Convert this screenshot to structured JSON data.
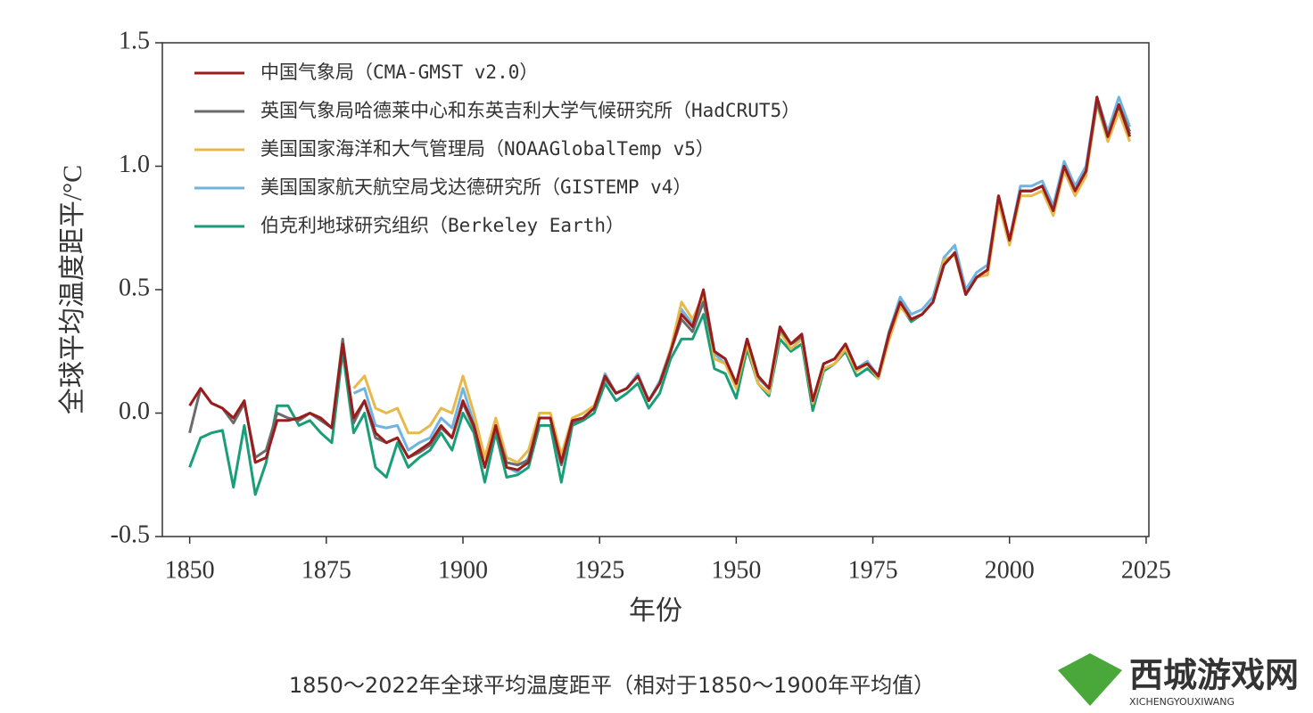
{
  "chart_data": {
    "type": "line",
    "y_label": "全球平均温度距平/°C",
    "x_label": "年份",
    "caption": "1850～2022年全球平均温度距平（相对于1850～1900年平均值）",
    "watermark": {
      "title": "西城游戏网",
      "subtitle": "XICHENGYOUXIWANG"
    },
    "legend": "upper left",
    "xlim": [
      1845,
      2025.5
    ],
    "xticks": [
      1850,
      1875,
      1900,
      1925,
      1950,
      1975,
      2000,
      2025
    ],
    "ylim": [
      -0.5,
      1.5
    ],
    "yticks": [
      -0.5,
      {
        "value": 0,
        "label": "0.0"
      },
      0.5,
      {
        "value": 1,
        "label": "1.0"
      },
      1.5
    ],
    "x": [
      1850,
      1852,
      1854,
      1856,
      1858,
      1860,
      1862,
      1864,
      1866,
      1868,
      1870,
      1872,
      1874,
      1876,
      1878,
      1880,
      1882,
      1884,
      1886,
      1888,
      1890,
      1892,
      1894,
      1896,
      1898,
      1900,
      1902,
      1904,
      1906,
      1908,
      1910,
      1912,
      1914,
      1916,
      1918,
      1920,
      1922,
      1924,
      1926,
      1928,
      1930,
      1932,
      1934,
      1936,
      1938,
      1940,
      1942,
      1944,
      1946,
      1948,
      1950,
      1952,
      1954,
      1956,
      1958,
      1960,
      1962,
      1964,
      1966,
      1968,
      1970,
      1972,
      1974,
      1976,
      1978,
      1980,
      1982,
      1984,
      1986,
      1988,
      1990,
      1992,
      1994,
      1996,
      1998,
      2000,
      2002,
      2004,
      2006,
      2008,
      2010,
      2012,
      2014,
      2016,
      2018,
      2020,
      2022
    ],
    "series": [
      {
        "name": "中国气象局（CMA-GMST v2.0）",
        "color": "#9b1c1c",
        "values": [
          0.03,
          0.1,
          0.04,
          0.02,
          -0.02,
          0.05,
          -0.2,
          -0.18,
          -0.03,
          -0.03,
          -0.02,
          0.0,
          -0.02,
          -0.06,
          0.28,
          -0.02,
          0.05,
          -0.08,
          -0.12,
          -0.1,
          -0.18,
          -0.15,
          -0.12,
          -0.05,
          -0.1,
          0.05,
          -0.05,
          -0.22,
          -0.05,
          -0.22,
          -0.23,
          -0.2,
          -0.02,
          -0.02,
          -0.2,
          -0.03,
          -0.02,
          0.02,
          0.15,
          0.08,
          0.1,
          0.15,
          0.05,
          0.12,
          0.25,
          0.4,
          0.35,
          0.5,
          0.25,
          0.22,
          0.12,
          0.3,
          0.15,
          0.1,
          0.35,
          0.28,
          0.32,
          0.05,
          0.2,
          0.22,
          0.28,
          0.18,
          0.2,
          0.15,
          0.32,
          0.45,
          0.38,
          0.4,
          0.45,
          0.6,
          0.65,
          0.48,
          0.55,
          0.58,
          0.88,
          0.7,
          0.9,
          0.9,
          0.92,
          0.82,
          1.0,
          0.9,
          0.98,
          1.28,
          1.12,
          1.25,
          1.12
        ]
      },
      {
        "name": "英国气象局哈德莱中心和东英吉利大学气候研究所（HadCRUT5）",
        "color": "#6b6b6b",
        "values": [
          -0.08,
          0.1,
          0.04,
          0.02,
          -0.04,
          0.04,
          -0.18,
          -0.15,
          0.0,
          -0.02,
          -0.03,
          0.0,
          -0.03,
          -0.06,
          0.3,
          -0.04,
          0.05,
          -0.1,
          -0.12,
          -0.1,
          -0.18,
          -0.16,
          -0.13,
          -0.06,
          -0.1,
          0.04,
          -0.06,
          -0.22,
          -0.06,
          -0.2,
          -0.21,
          -0.19,
          -0.02,
          -0.02,
          -0.21,
          -0.04,
          -0.02,
          0.02,
          0.14,
          0.08,
          0.1,
          0.15,
          0.05,
          0.12,
          0.25,
          0.38,
          0.33,
          0.45,
          0.25,
          0.22,
          0.12,
          0.3,
          0.15,
          0.1,
          0.34,
          0.28,
          0.31,
          0.05,
          0.2,
          0.22,
          0.28,
          0.18,
          0.2,
          0.15,
          0.33,
          0.45,
          0.38,
          0.4,
          0.45,
          0.6,
          0.65,
          0.48,
          0.55,
          0.58,
          0.88,
          0.7,
          0.9,
          0.9,
          0.92,
          0.82,
          1.0,
          0.9,
          0.98,
          1.26,
          1.12,
          1.25,
          1.14
        ]
      },
      {
        "name": "美国国家海洋和大气管理局（NOAAGlobalTemp v5）",
        "color": "#e8b84a",
        "values": [
          null,
          null,
          null,
          null,
          null,
          null,
          null,
          null,
          null,
          null,
          null,
          null,
          null,
          null,
          null,
          0.1,
          0.15,
          0.02,
          0.0,
          0.02,
          -0.08,
          -0.08,
          -0.05,
          0.02,
          0.0,
          0.15,
          0.0,
          -0.18,
          -0.02,
          -0.18,
          -0.2,
          -0.15,
          0.0,
          0.0,
          -0.17,
          -0.02,
          0.0,
          0.03,
          0.15,
          0.08,
          0.1,
          0.15,
          0.05,
          0.12,
          0.26,
          0.45,
          0.38,
          0.48,
          0.22,
          0.2,
          0.1,
          0.28,
          0.12,
          0.08,
          0.33,
          0.26,
          0.3,
          0.04,
          0.18,
          0.2,
          0.26,
          0.17,
          0.2,
          0.14,
          0.3,
          0.43,
          0.38,
          0.4,
          0.45,
          0.62,
          0.64,
          0.48,
          0.55,
          0.56,
          0.85,
          0.68,
          0.88,
          0.88,
          0.9,
          0.8,
          0.98,
          0.88,
          0.96,
          1.25,
          1.1,
          1.22,
          1.1
        ]
      },
      {
        "name": "美国国家航天航空局戈达德研究所（GISTEMP v4）",
        "color": "#6fb4e0",
        "values": [
          null,
          null,
          null,
          null,
          null,
          null,
          null,
          null,
          null,
          null,
          null,
          null,
          null,
          null,
          null,
          0.08,
          0.1,
          -0.05,
          -0.06,
          -0.05,
          -0.15,
          -0.12,
          -0.1,
          -0.02,
          -0.06,
          0.1,
          -0.04,
          -0.22,
          -0.05,
          -0.22,
          -0.24,
          -0.18,
          -0.02,
          -0.02,
          -0.2,
          -0.03,
          -0.02,
          0.02,
          0.16,
          0.08,
          0.1,
          0.16,
          0.05,
          0.13,
          0.26,
          0.42,
          0.36,
          0.48,
          0.24,
          0.2,
          0.12,
          0.3,
          0.14,
          0.1,
          0.34,
          0.28,
          0.3,
          0.05,
          0.2,
          0.22,
          0.28,
          0.18,
          0.21,
          0.15,
          0.33,
          0.47,
          0.4,
          0.42,
          0.47,
          0.63,
          0.68,
          0.5,
          0.57,
          0.6,
          0.88,
          0.7,
          0.92,
          0.92,
          0.94,
          0.84,
          1.02,
          0.92,
          1.0,
          1.28,
          1.14,
          1.28,
          1.16
        ]
      },
      {
        "name": "伯克利地球研究组织（Berkeley Earth）",
        "color": "#1a9e78",
        "values": [
          -0.22,
          -0.1,
          -0.08,
          -0.07,
          -0.3,
          -0.05,
          -0.33,
          -0.2,
          0.03,
          0.03,
          -0.05,
          -0.03,
          -0.08,
          -0.12,
          0.25,
          -0.08,
          0.0,
          -0.22,
          -0.26,
          -0.12,
          -0.22,
          -0.18,
          -0.15,
          -0.08,
          -0.15,
          0.0,
          -0.08,
          -0.28,
          -0.08,
          -0.26,
          -0.25,
          -0.22,
          -0.05,
          -0.05,
          -0.28,
          -0.05,
          -0.03,
          0.0,
          0.12,
          0.05,
          0.08,
          0.12,
          0.02,
          0.08,
          0.22,
          0.3,
          0.3,
          0.4,
          0.18,
          0.16,
          0.06,
          0.26,
          0.12,
          0.07,
          0.3,
          0.25,
          0.28,
          0.01,
          0.17,
          0.2,
          0.25,
          0.15,
          0.18,
          0.14,
          0.3,
          0.44,
          0.37,
          0.4,
          0.45,
          0.6,
          0.65,
          0.48,
          0.55,
          0.58,
          0.88,
          0.7,
          0.9,
          0.9,
          0.92,
          0.82,
          1.0,
          0.9,
          0.98,
          1.27,
          1.12,
          1.24,
          1.13
        ]
      }
    ]
  }
}
